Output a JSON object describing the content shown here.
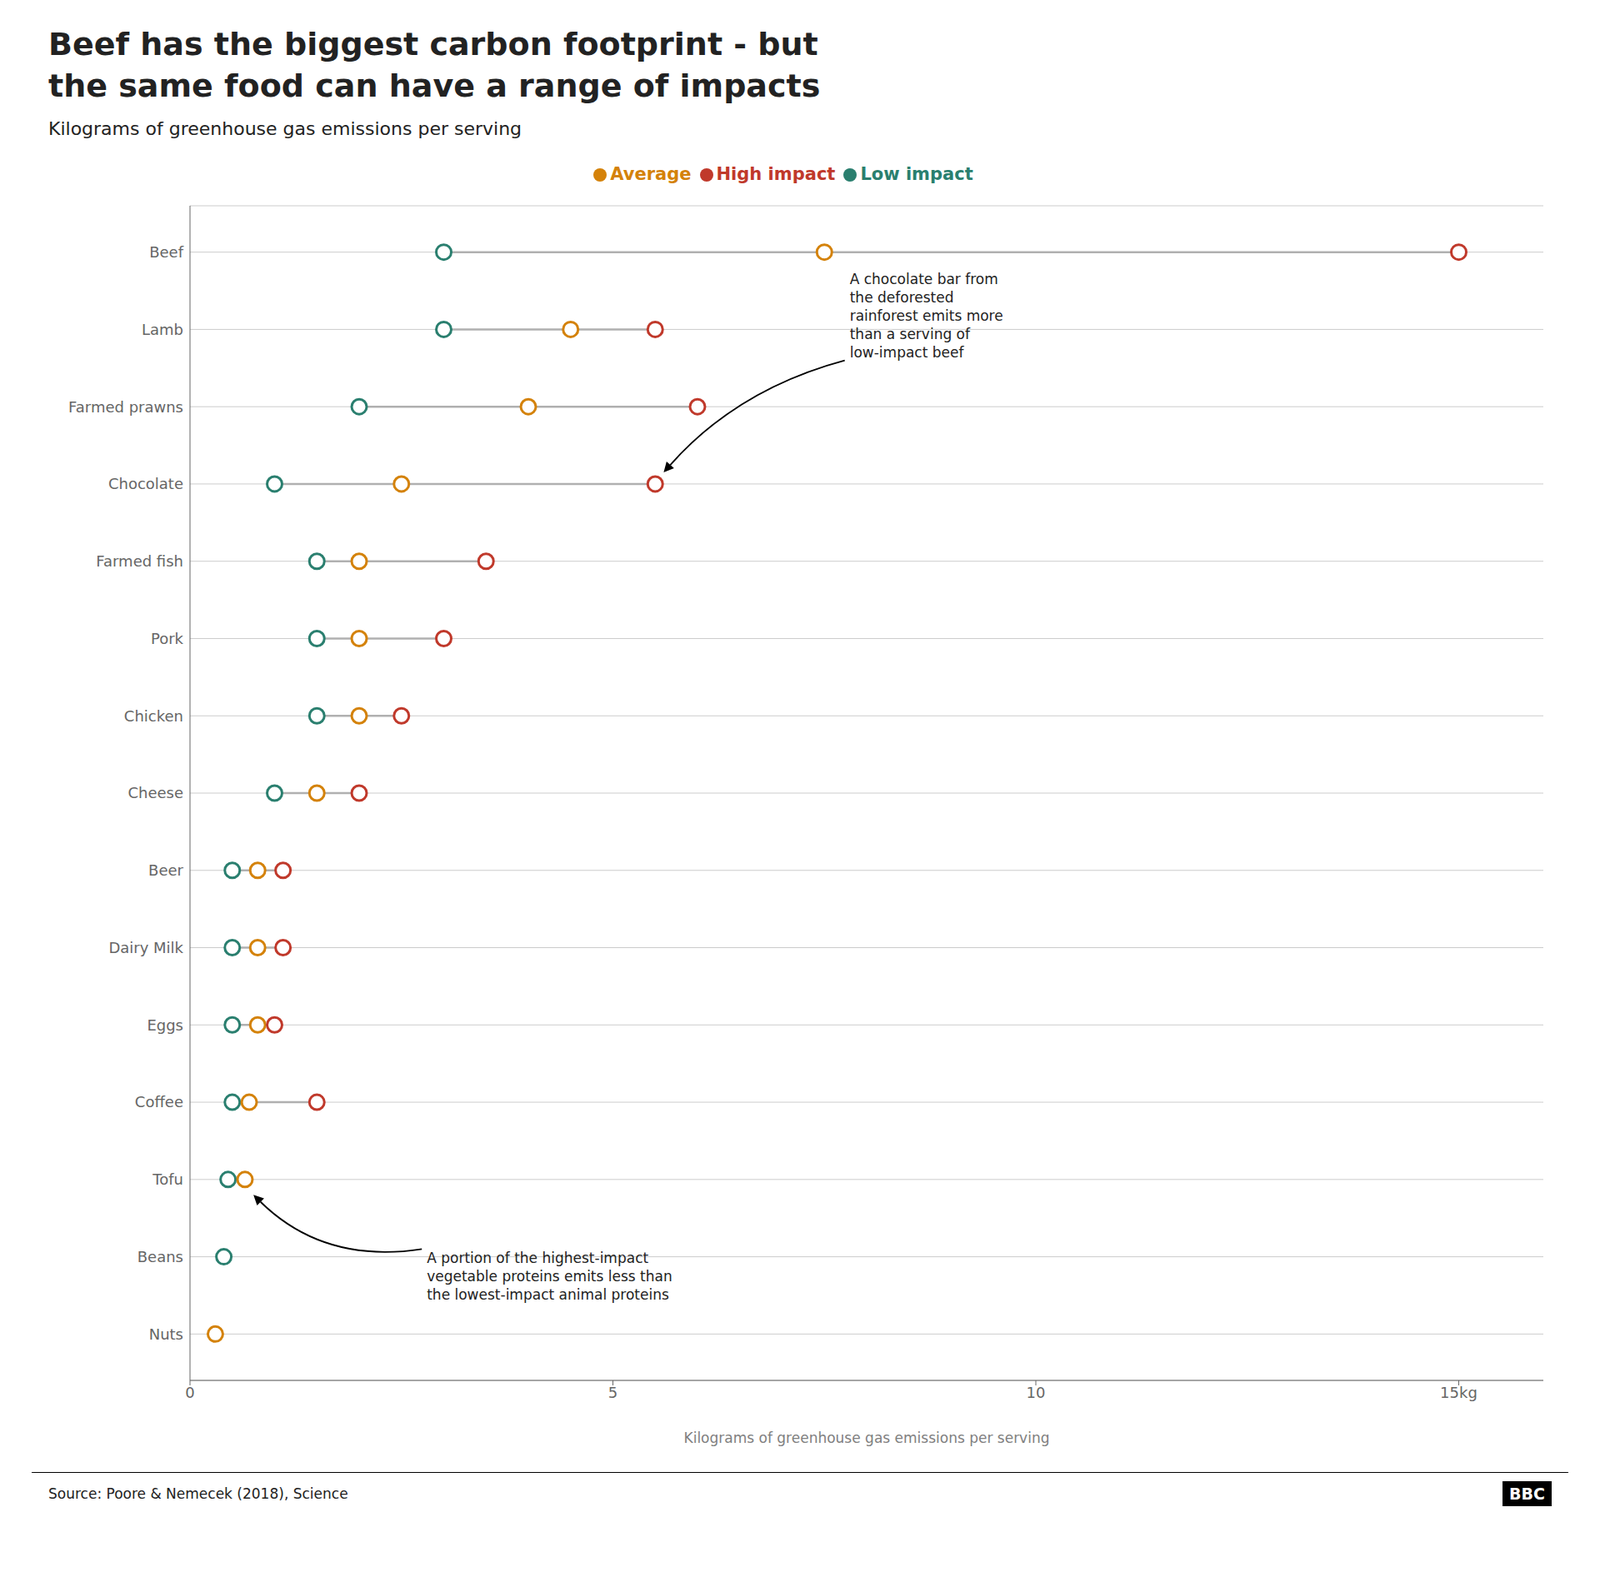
{
  "chart_data": {
    "type": "dumbbell",
    "title": "Beef has the biggest carbon footprint - but\nthe same food can have a range of impacts",
    "subtitle": "Kilograms of greenhouse gas emissions per serving",
    "xlabel": "Kilograms of greenhouse gas emissions per serving",
    "source": "Source: Poore & Nemecek (2018), Science",
    "credit": "BBC",
    "categories": [
      "Beef",
      "Lamb",
      "Farmed prawns",
      "Chocolate",
      "Farmed fish",
      "Pork",
      "Chicken",
      "Cheese",
      "Beer",
      "Dairy Milk",
      "Eggs",
      "Coffee",
      "Tofu",
      "Beans",
      "Nuts"
    ],
    "series": [
      {
        "name": "Low impact",
        "color": "#2a7f6f",
        "values": [
          3.0,
          3.0,
          2.0,
          1.0,
          1.5,
          1.5,
          1.5,
          1.0,
          0.5,
          0.5,
          0.5,
          0.5,
          0.45,
          0.4,
          null
        ]
      },
      {
        "name": "Average",
        "color": "#d4820a",
        "values": [
          7.5,
          4.5,
          4.0,
          2.5,
          2.0,
          2.0,
          2.0,
          1.5,
          0.8,
          0.8,
          0.8,
          0.7,
          0.65,
          null,
          0.3
        ]
      },
      {
        "name": "High impact",
        "color": "#c0392b",
        "values": [
          15.0,
          5.5,
          6.0,
          5.5,
          3.5,
          3.0,
          2.5,
          2.0,
          1.1,
          1.1,
          1.0,
          1.5,
          null,
          null,
          null
        ]
      }
    ],
    "color": "#b0b0b0",
    "xlim": [
      0,
      16
    ],
    "xticks": [
      0,
      5,
      10,
      {
        "value": 15,
        "label": "15kg"
      }
    ],
    "grid": true,
    "legend": "top",
    "annotations": [
      "A chocolate bar from\nthe deforested\nrainforest emits more\nthan a serving of\nlow-impact beef",
      "A portion of the highest-impact\nvegetable proteins emits less than\nthe lowest-impact animal proteins"
    ]
  }
}
